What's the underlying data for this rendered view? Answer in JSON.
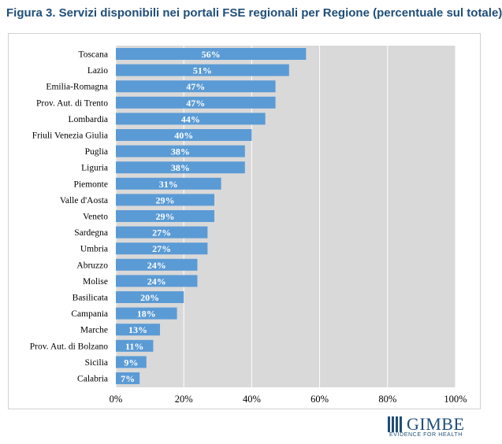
{
  "header": {
    "title": "Figura 3. Servizi disponibili nei portali FSE regionali per Regione (percentuale sul totale)"
  },
  "logo": {
    "wordmark": "GIMBE",
    "tagline": "EVIDENCE FOR HEALTH"
  },
  "colors": {
    "bar": "#5b9bd5",
    "plot_background": "#d9d9d9",
    "gridline": "#ffffff",
    "title": "#1f4e79"
  },
  "chart_data": {
    "type": "bar",
    "orientation": "horizontal",
    "title": "Figura 3. Servizi disponibili nei portali FSE regionali per Regione (percentuale sul totale)",
    "xlabel": "",
    "ylabel": "",
    "xlim": [
      0,
      100
    ],
    "x_ticks": [
      0,
      20,
      40,
      60,
      80,
      100
    ],
    "x_tick_labels": [
      "0%",
      "20%",
      "40%",
      "60%",
      "80%",
      "100%"
    ],
    "grid": true,
    "legend": "none",
    "categories": [
      "Toscana",
      "Lazio",
      "Emilia-Romagna",
      "Prov. Aut. di Trento",
      "Lombardia",
      "Friuli Venezia Giulia",
      "Puglia",
      "Liguria",
      "Piemonte",
      "Valle d'Aosta",
      "Veneto",
      "Sardegna",
      "Umbria",
      "Abruzzo",
      "Molise",
      "Basilicata",
      "Campania",
      "Marche",
      "Prov. Aut. di Bolzano",
      "Sicilia",
      "Calabria"
    ],
    "values": [
      56,
      51,
      47,
      47,
      44,
      40,
      38,
      38,
      31,
      29,
      29,
      27,
      27,
      24,
      24,
      20,
      18,
      13,
      11,
      9,
      7
    ],
    "data_labels": [
      "56%",
      "51%",
      "47%",
      "47%",
      "44%",
      "40%",
      "38%",
      "38%",
      "31%",
      "29%",
      "29%",
      "27%",
      "27%",
      "24%",
      "24%",
      "20%",
      "18%",
      "13%",
      "11%",
      "9%",
      "7%"
    ]
  }
}
